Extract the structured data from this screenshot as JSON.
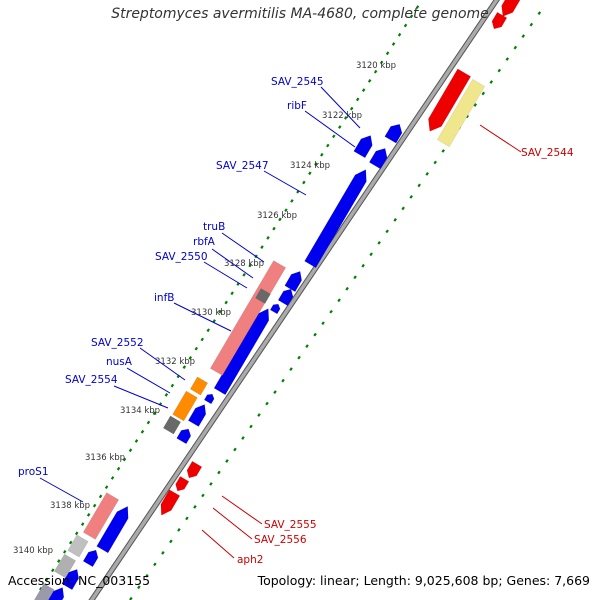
{
  "title": "Streptomyces avermitilis MA-4680, complete genome",
  "footer": {
    "accession": "Accession: NC_003155",
    "summary": "Topology: linear; Length: 9,025,608 bp; Genes: 7,669"
  },
  "ruler": {
    "unit": "kbp",
    "ticks": [
      "3120 kbp",
      "3122 kbp",
      "3124 kbp",
      "3126 kbp",
      "3128 kbp",
      "3130 kbp",
      "3132 kbp",
      "3134 kbp",
      "3136 kbp",
      "3138 kbp",
      "3140 kbp"
    ]
  },
  "colors": {
    "backbone": "#888888",
    "forward_gene": "#0000ee",
    "reverse_gene": "#ee0000",
    "rna_pink": "#f08080",
    "rna_orange": "#ff8c00",
    "rna_grey": "#696969",
    "pale_yellow": "#f0e68c",
    "light_grey": "#c0c0c0",
    "dots": "#008000",
    "left_label": "#0000cc",
    "right_label": "#cc0000"
  },
  "left_labels": [
    "SAV_2545",
    "ribF",
    "SAV_2547",
    "truB",
    "rbfA",
    "SAV_2550",
    "infB",
    "SAV_2552",
    "nusA",
    "SAV_2554",
    "proS1"
  ],
  "right_labels": [
    "SAV_2544",
    "SAV_2555",
    "SAV_2556",
    "aph2"
  ]
}
